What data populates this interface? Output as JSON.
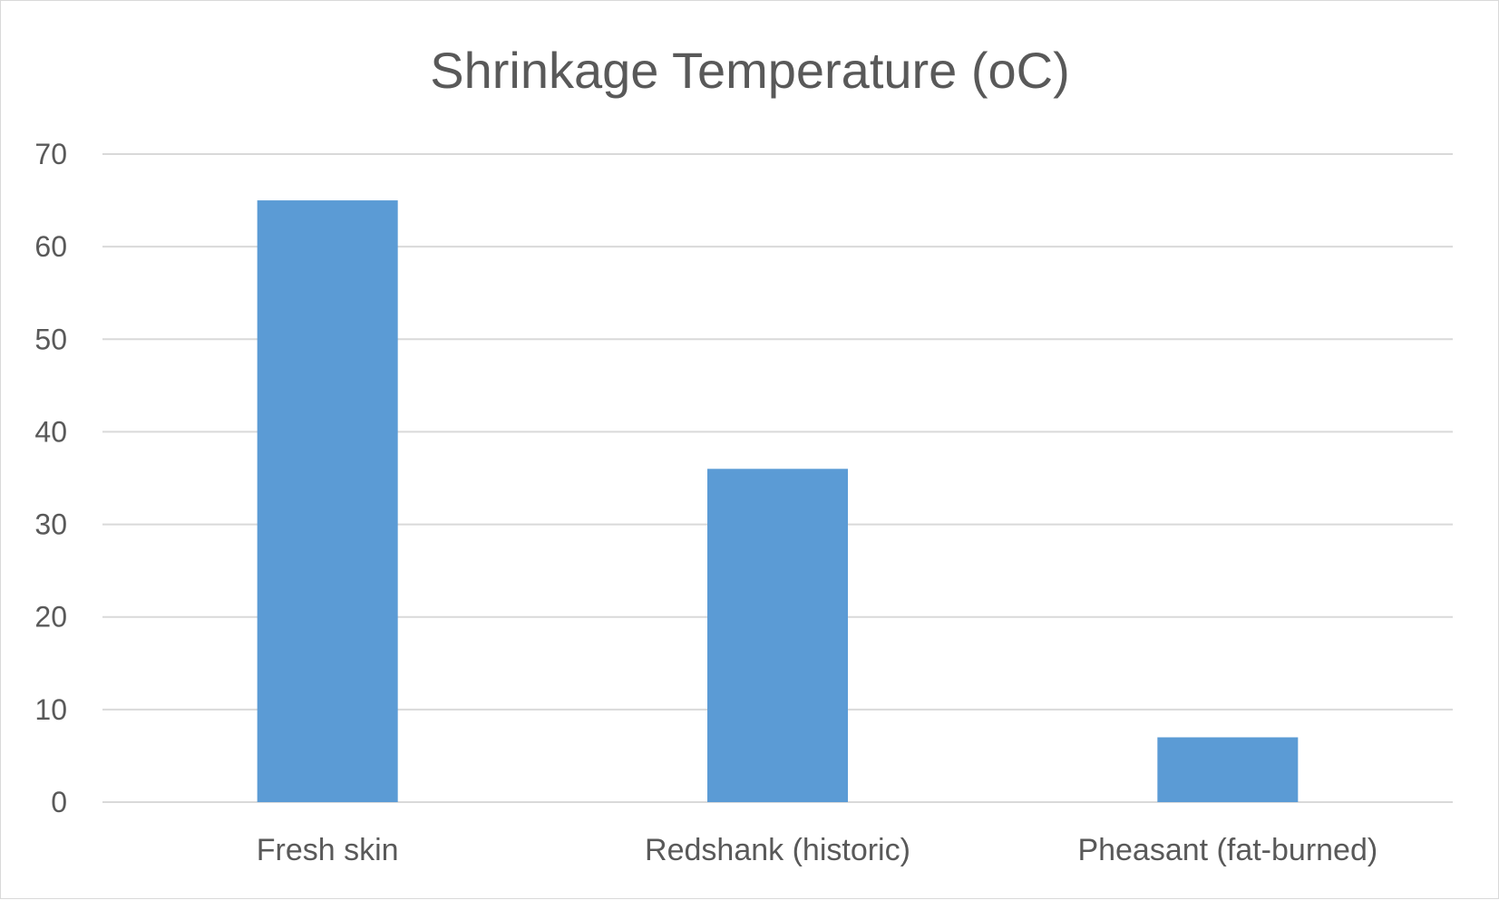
{
  "chart_data": {
    "type": "bar",
    "title": "Shrinkage Temperature (oC)",
    "xlabel": "",
    "ylabel": "",
    "categories": [
      "Fresh skin",
      "Redshank (historic)",
      "Pheasant (fat-burned)"
    ],
    "values": [
      65,
      36,
      7
    ],
    "ylim": [
      0,
      70
    ],
    "yticks": [
      "0",
      "10",
      "20",
      "30",
      "40",
      "50",
      "60",
      "70"
    ],
    "grid": true,
    "legend": "none",
    "bar_color": "#5b9bd5",
    "grid_color": "#d9d9d9",
    "text_color": "#595959"
  }
}
